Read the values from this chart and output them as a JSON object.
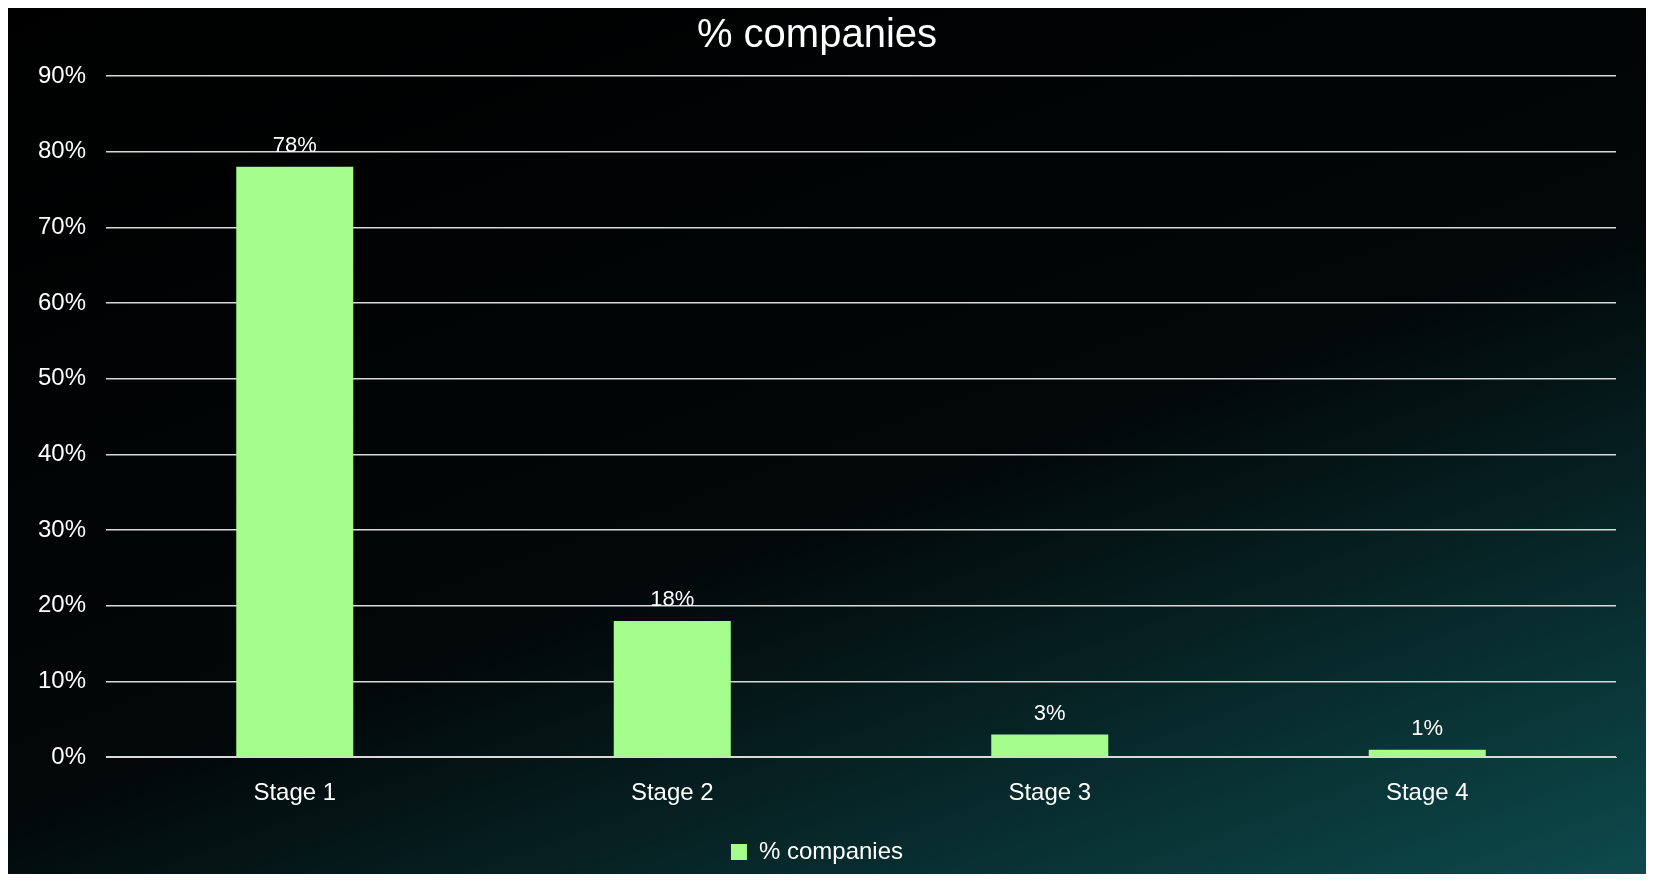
{
  "chart_data": {
    "type": "bar",
    "title": "% companies",
    "categories": [
      "Stage 1",
      "Stage 2",
      "Stage 3",
      "Stage 4"
    ],
    "series": [
      {
        "name": "% companies",
        "color": "#a3fc8c",
        "values": [
          78,
          18,
          3,
          1
        ],
        "value_labels": [
          "78%",
          "18%",
          "3%",
          "1%"
        ]
      }
    ],
    "ylim": [
      0,
      90
    ],
    "yticks": [
      {
        "value": 0,
        "label": "0%"
      },
      {
        "value": 10,
        "label": "10%"
      },
      {
        "value": 20,
        "label": "20%"
      },
      {
        "value": 30,
        "label": "30%"
      },
      {
        "value": 40,
        "label": "40%"
      },
      {
        "value": 50,
        "label": "50%"
      },
      {
        "value": 60,
        "label": "60%"
      },
      {
        "value": 70,
        "label": "70%"
      },
      {
        "value": 80,
        "label": "80%"
      },
      {
        "value": 90,
        "label": "90%"
      }
    ],
    "grid": "y",
    "legend": "bottom"
  }
}
